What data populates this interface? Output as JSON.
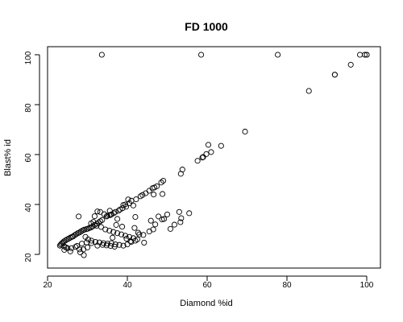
{
  "chart_data": {
    "type": "scatter",
    "title": "FD 1000",
    "xlabel": "Diamond %id",
    "ylabel": "Blast% id",
    "xlim": [
      20,
      100
    ],
    "ylim": [
      20,
      100
    ],
    "xticks": [
      20,
      40,
      60,
      80,
      100
    ],
    "yticks": [
      20,
      40,
      60,
      80,
      100
    ],
    "grid": false,
    "marker": "open-circle",
    "series": [
      {
        "values": [
          [
            33.6,
            100
          ],
          [
            58.5,
            100
          ],
          [
            77.7,
            100
          ],
          [
            98.3,
            100
          ],
          [
            99.5,
            100
          ],
          [
            100,
            100
          ],
          [
            100,
            100
          ],
          [
            96,
            96
          ],
          [
            92,
            92
          ],
          [
            92,
            92
          ],
          [
            85.5,
            85.5
          ],
          [
            69.5,
            69.2
          ],
          [
            63.5,
            63.5
          ],
          [
            60.3,
            63.9
          ],
          [
            61,
            61
          ],
          [
            59.8,
            60.2
          ],
          [
            59,
            59
          ],
          [
            58.8,
            58.8
          ],
          [
            57.6,
            57.5
          ],
          [
            53.8,
            54
          ],
          [
            53.4,
            52.3
          ],
          [
            55.5,
            36.5
          ],
          [
            53.5,
            34.5
          ],
          [
            50,
            36
          ],
          [
            53,
            37
          ],
          [
            49,
            49.5
          ],
          [
            48.5,
            48.8
          ],
          [
            47.4,
            47.3
          ],
          [
            46.8,
            46.8
          ],
          [
            46.3,
            46.5
          ],
          [
            45.5,
            45.5
          ],
          [
            44.6,
            44.5
          ],
          [
            43.8,
            43.8
          ],
          [
            43.3,
            43.3
          ],
          [
            48.8,
            44.2
          ],
          [
            46.6,
            44
          ],
          [
            42.2,
            42.1
          ],
          [
            41,
            41.5
          ],
          [
            40.2,
            42
          ],
          [
            40.5,
            40.5
          ],
          [
            39.5,
            40
          ],
          [
            39,
            39.8
          ],
          [
            41.5,
            39.6
          ],
          [
            39.7,
            39.1
          ],
          [
            38.8,
            38.5
          ],
          [
            38.2,
            38
          ],
          [
            37.8,
            37.5
          ],
          [
            37,
            37
          ],
          [
            42,
            35
          ],
          [
            36.6,
            36.5
          ],
          [
            36,
            36
          ],
          [
            35.8,
            35.8
          ],
          [
            35.5,
            35.7
          ],
          [
            35,
            35.5
          ],
          [
            34.8,
            35.2
          ],
          [
            37.5,
            34.2
          ],
          [
            33.7,
            33.8
          ],
          [
            33.2,
            33.3
          ],
          [
            32.8,
            32.7
          ],
          [
            32.4,
            32.3
          ],
          [
            31.8,
            31.8
          ],
          [
            31.3,
            31.2
          ],
          [
            30.9,
            30.8
          ],
          [
            30.5,
            30.6
          ],
          [
            30.1,
            30.3
          ],
          [
            29.7,
            30.1
          ],
          [
            29.2,
            29.9
          ],
          [
            28.8,
            29.6
          ],
          [
            28.4,
            29.2
          ],
          [
            28,
            28.8
          ],
          [
            27.6,
            28.5
          ],
          [
            27.2,
            28.1
          ],
          [
            26.8,
            27.7
          ],
          [
            26.4,
            27.2
          ],
          [
            26.1,
            27
          ],
          [
            25.7,
            26.7
          ],
          [
            25.3,
            26.3
          ],
          [
            24.9,
            26
          ],
          [
            24.5,
            25.6
          ],
          [
            24.1,
            25.2
          ],
          [
            23.8,
            24.7
          ],
          [
            23.5,
            24.3
          ],
          [
            23.3,
            23.9
          ],
          [
            23.1,
            23.5
          ],
          [
            24.2,
            23.2
          ],
          [
            24.6,
            22.8
          ],
          [
            25,
            22.5
          ],
          [
            26,
            22.5
          ],
          [
            27,
            23
          ],
          [
            28,
            22
          ],
          [
            29,
            22
          ],
          [
            30,
            22.8
          ],
          [
            31,
            24.5
          ],
          [
            32,
            25
          ],
          [
            33,
            24.8
          ],
          [
            34,
            24.5
          ],
          [
            35,
            24.3
          ],
          [
            36,
            24.5
          ],
          [
            37,
            24
          ],
          [
            38,
            23.8
          ],
          [
            39,
            23.5
          ],
          [
            40,
            24
          ],
          [
            41,
            25
          ],
          [
            42,
            25.5
          ],
          [
            43,
            28
          ],
          [
            44,
            27.8
          ],
          [
            45.5,
            29.2
          ],
          [
            46.5,
            30
          ],
          [
            47,
            32
          ],
          [
            48.7,
            34
          ],
          [
            31.5,
            33
          ],
          [
            32.3,
            31.5
          ],
          [
            33.4,
            31
          ],
          [
            34.5,
            30
          ],
          [
            35.5,
            29.5
          ],
          [
            36.5,
            29
          ],
          [
            37.5,
            28.5
          ],
          [
            38.5,
            28
          ],
          [
            39.5,
            27.5
          ],
          [
            40.5,
            27
          ],
          [
            41.5,
            26.5
          ],
          [
            42.5,
            26
          ],
          [
            27.8,
            35.2
          ],
          [
            29.5,
            27
          ],
          [
            30.2,
            26
          ],
          [
            31,
            25.5
          ],
          [
            32.5,
            23.5
          ],
          [
            33.8,
            23.8
          ],
          [
            34.8,
            23.6
          ],
          [
            35.8,
            23.4
          ],
          [
            36.8,
            23.1
          ],
          [
            27.4,
            23.4
          ],
          [
            28.6,
            24.3
          ],
          [
            29.8,
            24.8
          ],
          [
            28.2,
            20.8
          ],
          [
            29.1,
            19.7
          ],
          [
            25.7,
            21.2
          ],
          [
            24.2,
            21.8
          ],
          [
            32.5,
            37.2
          ],
          [
            33.2,
            37
          ],
          [
            35.6,
            37.5
          ],
          [
            34.2,
            36.1
          ],
          [
            31.8,
            35.3
          ],
          [
            30.9,
            32.4
          ],
          [
            38.7,
            31.1
          ],
          [
            37.2,
            31.8
          ],
          [
            41.8,
            30.6
          ],
          [
            42.7,
            28.7
          ],
          [
            39.8,
            26.3
          ],
          [
            40.8,
            25.3
          ],
          [
            44.2,
            24.7
          ],
          [
            36.3,
            26.7
          ],
          [
            45.9,
            33.5
          ],
          [
            47.8,
            35.2
          ],
          [
            49.2,
            34.2
          ],
          [
            51.8,
            31.9
          ],
          [
            53.3,
            32.9
          ],
          [
            50.8,
            30.2
          ]
        ]
      }
    ]
  }
}
